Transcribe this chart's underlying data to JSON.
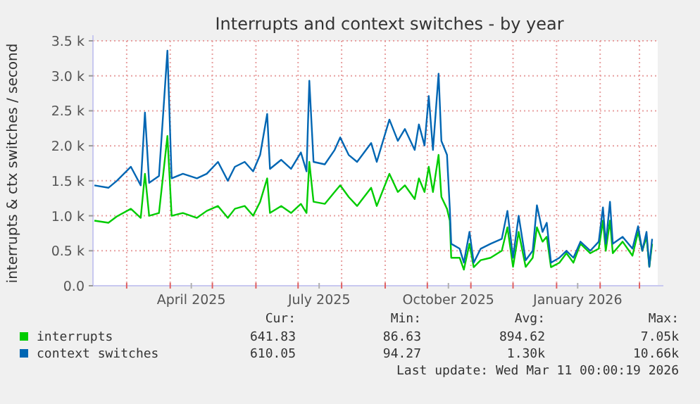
{
  "chart_data": {
    "type": "line",
    "title": "Interrupts and context switches - by year",
    "ylabel": "interrupts & ctx switches / second",
    "xlim": [
      "2025-02-05",
      "2026-03-14"
    ],
    "ylim": [
      0,
      3500
    ],
    "yticks": [
      {
        "value": 0,
        "label": "0.0"
      },
      {
        "value": 500,
        "label": "0.5 k"
      },
      {
        "value": 1000,
        "label": "1.0 k"
      },
      {
        "value": 1500,
        "label": "1.5 k"
      },
      {
        "value": 2000,
        "label": "2.0 k"
      },
      {
        "value": 2500,
        "label": "2.5 k"
      },
      {
        "value": 3000,
        "label": "3.0 k"
      },
      {
        "value": 3500,
        "label": "3.5 k"
      }
    ],
    "xticks": [
      {
        "value": "2025-03-01",
        "label": null
      },
      {
        "value": "2025-04-01",
        "label": null
      },
      {
        "value": "2025-04-16",
        "label": "April 2025"
      },
      {
        "value": "2025-05-01",
        "label": null
      },
      {
        "value": "2025-06-01",
        "label": null
      },
      {
        "value": "2025-07-01",
        "label": null
      },
      {
        "value": "2025-07-16",
        "label": "July 2025"
      },
      {
        "value": "2025-08-01",
        "label": null
      },
      {
        "value": "2025-09-01",
        "label": null
      },
      {
        "value": "2025-10-01",
        "label": null
      },
      {
        "value": "2025-10-16",
        "label": "October 2025"
      },
      {
        "value": "2025-11-01",
        "label": null
      },
      {
        "value": "2025-12-01",
        "label": null
      },
      {
        "value": "2026-01-01",
        "label": null
      },
      {
        "value": "2026-01-16",
        "label": "January 2026"
      },
      {
        "value": "2026-02-01",
        "label": null
      },
      {
        "value": "2026-03-01",
        "label": null
      }
    ],
    "x": [
      "2025-02-06",
      "2025-02-16",
      "2025-02-22",
      "2025-03-04",
      "2025-03-11",
      "2025-03-14",
      "2025-03-17",
      "2025-03-24",
      "2025-03-30",
      "2025-04-02",
      "2025-04-10",
      "2025-04-20",
      "2025-04-27",
      "2025-05-05",
      "2025-05-12",
      "2025-05-17",
      "2025-05-24",
      "2025-05-30",
      "2025-06-04",
      "2025-06-09",
      "2025-06-11",
      "2025-06-19",
      "2025-06-26",
      "2025-07-03",
      "2025-07-07",
      "2025-07-09",
      "2025-07-12",
      "2025-07-20",
      "2025-07-27",
      "2025-07-31",
      "2025-08-06",
      "2025-08-12",
      "2025-08-22",
      "2025-08-26",
      "2025-09-04",
      "2025-09-10",
      "2025-09-15",
      "2025-09-22",
      "2025-09-25",
      "2025-09-29",
      "2025-10-02",
      "2025-10-05",
      "2025-10-09",
      "2025-10-11",
      "2025-10-15",
      "2025-10-17",
      "2025-10-18",
      "2025-10-24",
      "2025-10-27",
      "2025-10-31",
      "2025-11-03",
      "2025-11-08",
      "2025-11-15",
      "2025-11-23",
      "2025-11-27",
      "2025-12-01",
      "2025-12-05",
      "2025-12-10",
      "2025-12-15",
      "2025-12-18",
      "2025-12-22",
      "2025-12-25",
      "2025-12-28",
      "2026-01-03",
      "2026-01-08",
      "2026-01-13",
      "2026-01-18",
      "2026-01-25",
      "2026-01-31",
      "2026-02-03",
      "2026-02-05",
      "2026-02-08",
      "2026-02-10",
      "2026-02-17",
      "2026-02-24",
      "2026-02-28",
      "2026-03-03",
      "2026-03-06",
      "2026-03-08",
      "2026-03-10"
    ],
    "series": [
      {
        "name": "interrupts",
        "color": "#00cc00",
        "values": [
          930,
          900,
          990,
          1100,
          970,
          1600,
          1000,
          1040,
          2140,
          1000,
          1040,
          970,
          1070,
          1140,
          970,
          1100,
          1140,
          1000,
          1200,
          1535,
          1040,
          1140,
          1040,
          1170,
          1040,
          1770,
          1200,
          1170,
          1340,
          1435,
          1270,
          1140,
          1400,
          1140,
          1600,
          1340,
          1435,
          1240,
          1535,
          1340,
          1700,
          1340,
          1870,
          1270,
          1100,
          930,
          400,
          400,
          230,
          600,
          265,
          365,
          400,
          500,
          835,
          270,
          770,
          270,
          400,
          835,
          630,
          700,
          265,
          330,
          465,
          330,
          600,
          465,
          530,
          930,
          500,
          930,
          465,
          630,
          430,
          770,
          500,
          700,
          270,
          600
        ]
      },
      {
        "name": "context switches",
        "color": "#0066b3",
        "values": [
          1435,
          1400,
          1500,
          1700,
          1435,
          2475,
          1470,
          1570,
          3360,
          1535,
          1600,
          1535,
          1600,
          1770,
          1500,
          1700,
          1770,
          1635,
          1870,
          2455,
          1670,
          1800,
          1670,
          1905,
          1635,
          2930,
          1770,
          1735,
          1940,
          2120,
          1870,
          1770,
          2040,
          1770,
          2375,
          2070,
          2240,
          1940,
          2305,
          2005,
          2710,
          1940,
          3030,
          2070,
          1870,
          1100,
          600,
          530,
          330,
          770,
          330,
          530,
          600,
          670,
          1070,
          400,
          1000,
          365,
          500,
          1150,
          770,
          900,
          330,
          400,
          500,
          400,
          630,
          500,
          630,
          1120,
          600,
          1200,
          600,
          700,
          530,
          850,
          500,
          770,
          270,
          670
        ]
      }
    ],
    "grid": true,
    "legend": "bottom",
    "annotations": [
      "Cur:",
      "Min:",
      "Avg:",
      "Max:",
      "641.83",
      "86.63",
      "894.62",
      "7.05k",
      "610.05",
      "94.27",
      "1.30k",
      "10.66k",
      "Last update: Wed Mar 11 00:00:19 2026"
    ]
  }
}
